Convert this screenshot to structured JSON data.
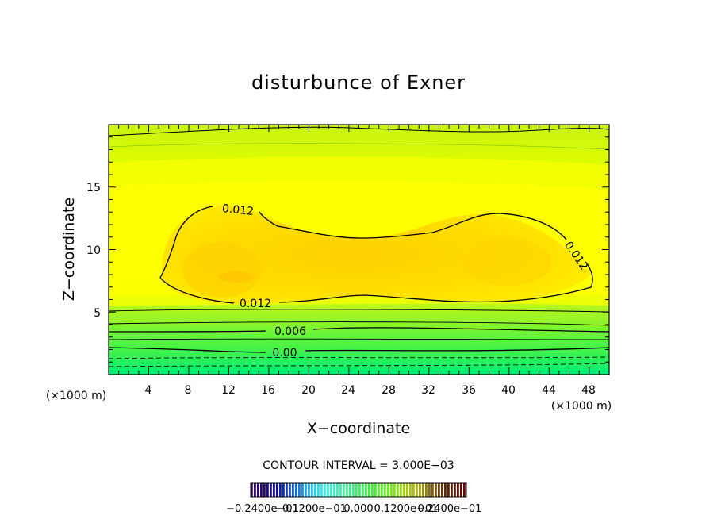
{
  "chart_data": {
    "type": "contour",
    "title": "disturbunce of Exner",
    "xlabel": "X−coordinate",
    "ylabel": "Z−coordinate",
    "x_unit_left": "(×1000 m)",
    "x_unit_right": "(×1000 m)",
    "xlim": [
      0,
      50
    ],
    "ylim": [
      0,
      20
    ],
    "x_ticks": [
      "4",
      "8",
      "12",
      "16",
      "20",
      "24",
      "28",
      "32",
      "36",
      "40",
      "44",
      "48"
    ],
    "y_ticks": [
      "5",
      "10",
      "15"
    ],
    "contour_interval_text": "CONTOUR INTERVAL = 3.000E−03",
    "contour_labels": [
      {
        "text": "0.012",
        "x": 13.2,
        "y": 13.3
      },
      {
        "text": "0.012",
        "x": 47.0,
        "y": 9.2
      },
      {
        "text": "0.012",
        "x": 16.5,
        "y": 5.7
      },
      {
        "text": "0.006",
        "x": 19.0,
        "y": 3.5
      },
      {
        "text": "0.00",
        "x": 18.0,
        "y": 1.8
      }
    ],
    "colorbar_labels": [
      "−0.2400e−01",
      "−0.1200e−01",
      "0.000",
      "0.1200e−01",
      "0.2400e−01"
    ],
    "colorbar_range": [
      -0.024,
      0.024
    ]
  }
}
